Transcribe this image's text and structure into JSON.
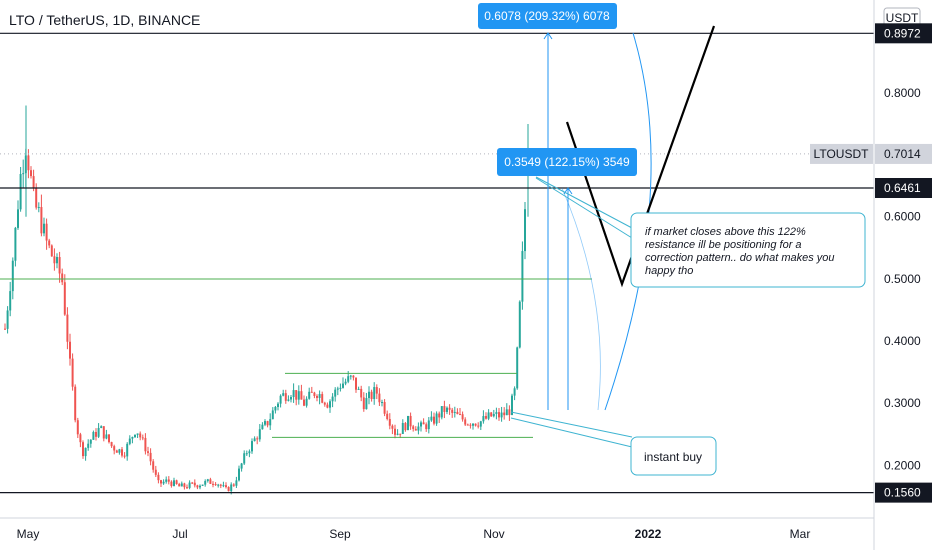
{
  "header": {
    "title": "LTO / TetherUS, 1D, BINANCE"
  },
  "currency": "USDT",
  "chart_data": {
    "type": "candlestick",
    "symbol": "LTO / TetherUS",
    "interval": "1D",
    "exchange": "BINANCE",
    "xlabels": [
      "May",
      "Jul",
      "Sep",
      "Nov",
      "2022",
      "Mar"
    ],
    "yticks": [
      "0.8000",
      "0.6000",
      "0.5000",
      "0.4000",
      "0.3000",
      "0.2000"
    ],
    "ylim": [
      0.11,
      1.0
    ],
    "price_labels": [
      {
        "name": "top-resistance",
        "value": 0.8972,
        "text": "0.8972",
        "style": "dark"
      },
      {
        "name": "current-price",
        "value": 0.7014,
        "text": "0.7014",
        "symbol": "LTOUSDT",
        "style": "light"
      },
      {
        "name": "mid-resistance",
        "value": 0.6461,
        "text": "0.6461",
        "style": "dark"
      },
      {
        "name": "support",
        "value": 0.156,
        "text": "0.1560",
        "style": "dark"
      }
    ],
    "range_labels": [
      {
        "text": "0.6078 (209.32%) 6078",
        "value": 0.6078,
        "percent": 209.32
      },
      {
        "text": "0.3549 (122.15%) 3549",
        "value": 0.3549,
        "percent": 122.15
      }
    ],
    "annotations": [
      {
        "text": "if market closes above this 122% resistance ill be positioning for a correction pattern.. do what makes you happy tho"
      },
      {
        "text": "instant buy"
      }
    ],
    "levels": {
      "green_line": 0.5,
      "range_top": 0.348,
      "range_bottom": 0.245
    },
    "colors": {
      "up": "#26a69a",
      "down": "#ef5350",
      "ruler": "#2196f3",
      "callout": "#3fb4d1",
      "level": "#4caf50"
    }
  }
}
